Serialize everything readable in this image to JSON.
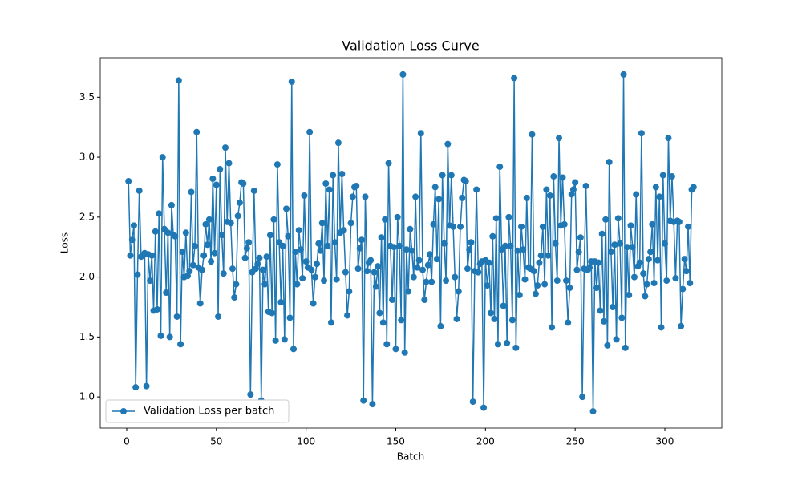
{
  "chart_data": {
    "type": "line",
    "title": "Validation Loss Curve",
    "x_label": "Batch",
    "y_label": "Loss",
    "x": [
      1,
      2,
      3,
      4,
      5,
      6,
      7,
      8,
      9,
      10,
      11,
      12,
      13,
      14,
      15,
      16,
      17,
      18,
      19,
      20,
      21,
      22,
      23,
      24,
      25,
      26,
      27,
      28,
      29,
      30,
      31,
      32,
      33,
      34,
      35,
      36,
      37,
      38,
      39,
      40,
      41,
      42,
      43,
      44,
      45,
      46,
      47,
      48,
      49,
      50,
      51,
      52,
      53,
      54,
      55,
      56,
      57,
      58,
      59,
      60,
      61,
      62,
      63,
      64,
      65,
      66,
      67,
      68,
      69,
      70,
      71,
      72,
      73,
      74,
      75,
      76,
      77,
      78,
      79,
      80,
      81,
      82,
      83,
      84,
      85,
      86,
      87,
      88,
      89,
      90,
      91,
      92,
      93,
      94,
      95,
      96,
      97,
      98,
      99,
      100,
      101,
      102,
      103,
      104,
      105,
      106,
      107,
      108,
      109,
      110,
      111,
      112,
      113,
      114,
      115,
      116,
      117,
      118,
      119,
      120,
      121,
      122,
      123,
      124,
      125,
      126,
      127,
      128,
      129,
      130,
      131,
      132,
      133,
      134,
      135,
      136,
      137,
      138,
      139,
      140,
      141,
      142,
      143,
      144,
      145,
      146,
      147,
      148,
      149,
      150,
      151,
      152,
      153,
      154,
      155,
      156,
      157,
      158,
      159,
      160,
      161,
      162,
      163,
      164,
      165,
      166,
      167,
      168,
      169,
      170,
      171,
      172,
      173,
      174,
      175,
      176,
      177,
      178,
      179,
      180,
      181,
      182,
      183,
      184,
      185,
      186,
      187,
      188,
      189,
      190,
      191,
      192,
      193,
      194,
      195,
      196,
      197,
      198,
      199,
      200,
      201,
      202,
      203,
      204,
      205,
      206,
      207,
      208,
      209,
      210,
      211,
      212,
      213,
      214,
      215,
      216,
      217,
      218,
      219,
      220,
      221,
      222,
      223,
      224,
      225,
      226,
      227,
      228,
      229,
      230,
      231,
      232,
      233,
      234,
      235,
      236,
      237,
      238,
      239,
      240,
      241,
      242,
      243,
      244,
      245,
      246,
      247,
      248,
      249,
      250,
      251,
      252,
      253,
      254,
      255,
      256,
      257,
      258,
      259,
      260,
      261,
      262,
      263,
      264,
      265,
      266,
      267,
      268,
      269,
      270,
      271,
      272,
      273,
      274,
      275,
      276,
      277,
      278,
      279,
      280,
      281,
      282,
      283,
      284,
      285,
      286,
      287,
      288,
      289,
      290,
      291,
      292,
      293,
      294,
      295,
      296,
      297,
      298,
      299,
      300,
      301,
      302,
      303,
      304,
      305,
      306,
      307,
      308,
      309,
      310,
      311,
      312,
      313,
      314,
      315,
      316
    ],
    "series": [
      {
        "name": "Validation Loss per batch",
        "color": "#1f77b4",
        "values": [
          2.8,
          2.18,
          2.31,
          2.43,
          1.08,
          2.02,
          2.72,
          2.17,
          2.18,
          2.2,
          1.09,
          2.19,
          1.97,
          2.18,
          1.72,
          2.38,
          1.73,
          2.53,
          1.51,
          3.0,
          2.4,
          1.87,
          2.37,
          1.5,
          2.6,
          2.35,
          2.34,
          1.67,
          3.64,
          1.44,
          2.21,
          2.0,
          2.37,
          2.01,
          2.05,
          2.71,
          2.1,
          2.26,
          3.21,
          2.08,
          1.78,
          2.06,
          2.18,
          2.44,
          2.27,
          2.48,
          2.13,
          2.82,
          2.2,
          2.77,
          1.67,
          2.9,
          2.35,
          2.03,
          3.08,
          2.46,
          2.95,
          2.45,
          2.07,
          1.83,
          1.94,
          2.51,
          2.62,
          2.79,
          2.78,
          2.16,
          2.24,
          2.29,
          1.02,
          2.04,
          2.72,
          2.07,
          2.11,
          2.16,
          0.97,
          2.06,
          1.94,
          2.17,
          1.71,
          2.35,
          1.7,
          2.48,
          1.47,
          2.94,
          2.29,
          1.79,
          2.26,
          1.48,
          2.57,
          2.34,
          1.66,
          3.63,
          1.4,
          2.21,
          1.94,
          2.39,
          2.23,
          1.99,
          2.68,
          2.13,
          2.08,
          3.21,
          2.06,
          1.78,
          2.0,
          2.11,
          2.28,
          2.22,
          2.45,
          1.97,
          2.78,
          2.26,
          2.73,
          1.62,
          2.85,
          2.29,
          1.98,
          3.12,
          2.37,
          2.86,
          2.39,
          2.04,
          1.68,
          1.88,
          2.45,
          2.67,
          2.75,
          2.76,
          2.07,
          2.24,
          2.31,
          0.97,
          2.67,
          2.05,
          2.12,
          2.14,
          0.94,
          2.04,
          1.92,
          2.09,
          1.7,
          2.33,
          1.62,
          2.48,
          1.44,
          2.95,
          2.26,
          1.81,
          2.25,
          1.4,
          2.5,
          2.26,
          1.64,
          3.69,
          1.37,
          2.23,
          1.88,
          2.4,
          2.22,
          2.0,
          2.67,
          2.08,
          2.14,
          3.2,
          2.06,
          1.81,
          1.96,
          2.1,
          2.19,
          1.96,
          2.44,
          2.75,
          2.15,
          2.65,
          1.59,
          2.85,
          2.28,
          1.97,
          3.11,
          2.43,
          2.85,
          2.42,
          2.0,
          1.65,
          1.88,
          2.42,
          2.66,
          2.81,
          2.8,
          2.07,
          2.23,
          2.29,
          0.96,
          2.05,
          2.73,
          2.04,
          2.11,
          2.13,
          0.91,
          2.14,
          1.93,
          2.12,
          1.7,
          2.34,
          1.65,
          2.49,
          1.44,
          2.92,
          2.23,
          1.76,
          2.26,
          1.45,
          2.5,
          2.26,
          1.64,
          3.66,
          1.41,
          2.22,
          1.85,
          2.42,
          2.23,
          1.98,
          2.66,
          2.08,
          2.07,
          3.19,
          2.05,
          1.86,
          1.93,
          2.12,
          2.18,
          2.42,
          1.94,
          2.73,
          2.18,
          2.68,
          1.58,
          2.84,
          2.28,
          1.97,
          3.16,
          2.43,
          2.83,
          2.44,
          1.97,
          1.62,
          1.91,
          2.69,
          2.73,
          2.79,
          2.06,
          2.21,
          2.33,
          1.0,
          2.07,
          2.76,
          2.06,
          2.08,
          2.13,
          0.88,
          2.13,
          1.91,
          2.12,
          1.72,
          2.36,
          1.63,
          2.48,
          1.43,
          2.96,
          2.21,
          1.75,
          2.27,
          1.48,
          2.49,
          2.28,
          1.66,
          3.69,
          1.41,
          2.25,
          1.85,
          2.43,
          2.25,
          2.0,
          2.69,
          2.09,
          2.12,
          3.2,
          2.03,
          1.84,
          1.94,
          2.15,
          2.21,
          2.44,
          1.95,
          2.75,
          2.14,
          2.67,
          1.58,
          2.85,
          2.28,
          1.97,
          3.16,
          2.47,
          2.84,
          2.46,
          1.99,
          2.47,
          2.46,
          1.59,
          1.9,
          2.15,
          2.05,
          2.42,
          1.95,
          2.73,
          2.75
        ]
      }
    ],
    "xlim": [
      -14.75,
      331.75
    ],
    "xticks": [
      0,
      50,
      100,
      150,
      200,
      250,
      300
    ],
    "ylim": [
      0.74,
      3.83
    ],
    "yticks": [
      {
        "value": 1,
        "label": "1.0"
      },
      1.5,
      {
        "value": 2,
        "label": "2.0"
      },
      2.5,
      {
        "value": 3,
        "label": "3.0"
      },
      3.5
    ],
    "markers": true,
    "grid": false,
    "legend": "lower left"
  }
}
